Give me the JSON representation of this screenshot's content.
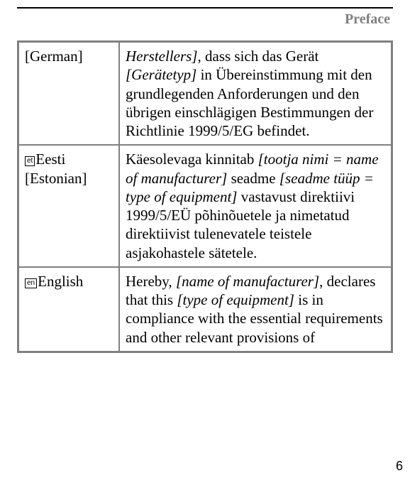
{
  "header": {
    "title": "Preface"
  },
  "page_number": "6",
  "table": {
    "rows": [
      {
        "badge": null,
        "lang_line1": "[German]",
        "lang_line2": null,
        "text_pre_italic1": "",
        "italic1": "Herstellers]",
        "mid1": ", dass sich das Gerät ",
        "italic2": "[Gerätetyp]",
        "mid2": " in Übereinstimmung mit den grundlegenden Anforderungen und den übrigen einschlägigen Bestimmungen der Richtlinie 1999/5/EG befindet.",
        "italic3": "",
        "tail": ""
      },
      {
        "badge": "et",
        "lang_line1": "Eesti",
        "lang_line2": "[Estonian]",
        "text_pre_italic1": "Käesolevaga kinnitab ",
        "italic1": "[tootja nimi = name of manufacturer]",
        "mid1": " seadme ",
        "italic2": "[seadme tüüp = type of equipment]",
        "mid2": " vastavust direktiivi 1999/5/EÜ põhinõuetele ja nimetatud direktiivist tulenevatele teistele asjakohastele sätetele.",
        "italic3": "",
        "tail": ""
      },
      {
        "badge": "en",
        "lang_line1": "English",
        "lang_line2": null,
        "text_pre_italic1": "Hereby, ",
        "italic1": "[name of manufacturer]",
        "mid1": ", declares that this ",
        "italic2": "[type of equipment]",
        "mid2": " is in compliance with the essential requirements and other relevant provisions of",
        "italic3": "",
        "tail": ""
      }
    ]
  }
}
